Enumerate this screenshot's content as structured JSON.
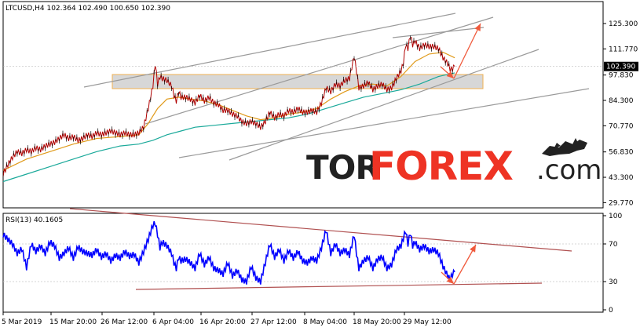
{
  "header": {
    "symbol_line": "LTCUSD,H4  102.364 102.490 100.650 102.390"
  },
  "rsi_header": "RSI(13) 40.1605",
  "watermark": {
    "part1": "TOR",
    "part2": "FOREX",
    "part3": ".com"
  },
  "colors": {
    "price_line": "#b00000",
    "ma_fast": "#e09a1a",
    "ma_slow": "#1aa99a",
    "rsi_line": "#0000ff",
    "trend_lines": "#9a9a9a",
    "rsi_trend": "#b05050",
    "arrow": "#f05a3c",
    "zone_fill": "#d0d0d0",
    "zone_border": "#f0b050"
  },
  "chart_data": [
    {
      "type": "line",
      "name_hint": "price",
      "y_ticks": [
        "125.300",
        "111.770",
        "97.830",
        "84.300",
        "70.770",
        "56.830",
        "43.300",
        "29.770"
      ],
      "y_tick_values": [
        125.3,
        111.77,
        97.83,
        84.3,
        70.77,
        56.83,
        43.3,
        29.77
      ],
      "ylim": [
        27.0,
        137.0
      ],
      "current_price_label": "102.390",
      "current_price": 102.39,
      "x_labels": [
        "5 Mar 2019",
        "15 Mar 20:00",
        "26 Mar 12:00",
        "6 Apr 04:00",
        "16 Apr 20:00",
        "27 Apr 12:00",
        "8 May 04:00",
        "18 May 20:00",
        "29 May 12:00"
      ],
      "price_path": [
        [
          0,
          45
        ],
        [
          2,
          50
        ],
        [
          4,
          54
        ],
        [
          6,
          57
        ],
        [
          8,
          56
        ],
        [
          10,
          58
        ],
        [
          12,
          57
        ],
        [
          14,
          59
        ],
        [
          16,
          58
        ],
        [
          18,
          60
        ],
        [
          20,
          61
        ],
        [
          22,
          62
        ],
        [
          24,
          64
        ],
        [
          26,
          66
        ],
        [
          28,
          64
        ],
        [
          30,
          65
        ],
        [
          32,
          63
        ],
        [
          34,
          64
        ],
        [
          36,
          66
        ],
        [
          38,
          65
        ],
        [
          40,
          67
        ],
        [
          42,
          66
        ],
        [
          44,
          67
        ],
        [
          46,
          68
        ],
        [
          48,
          67
        ],
        [
          50,
          66
        ],
        [
          52,
          67
        ],
        [
          54,
          66
        ],
        [
          56,
          66
        ],
        [
          58,
          67
        ],
        [
          60,
          70
        ],
        [
          62,
          80
        ],
        [
          64,
          92
        ],
        [
          65,
          104
        ],
        [
          66,
          93
        ],
        [
          67,
          97
        ],
        [
          68,
          96
        ],
        [
          70,
          95
        ],
        [
          72,
          92
        ],
        [
          73,
          87
        ],
        [
          74,
          84
        ],
        [
          75,
          89
        ],
        [
          76,
          86
        ],
        [
          78,
          86
        ],
        [
          80,
          85
        ],
        [
          82,
          83
        ],
        [
          84,
          87
        ],
        [
          86,
          84
        ],
        [
          88,
          86
        ],
        [
          90,
          83
        ],
        [
          92,
          82
        ],
        [
          94,
          79
        ],
        [
          96,
          79
        ],
        [
          98,
          77
        ],
        [
          100,
          76
        ],
        [
          102,
          73
        ],
        [
          104,
          72
        ],
        [
          106,
          73
        ],
        [
          108,
          72
        ],
        [
          110,
          70
        ],
        [
          112,
          73
        ],
        [
          114,
          78
        ],
        [
          116,
          75
        ],
        [
          118,
          77
        ],
        [
          120,
          76
        ],
        [
          122,
          79
        ],
        [
          124,
          78
        ],
        [
          126,
          80
        ],
        [
          128,
          78
        ],
        [
          130,
          78
        ],
        [
          132,
          79
        ],
        [
          134,
          78
        ],
        [
          136,
          83
        ],
        [
          138,
          91
        ],
        [
          140,
          89
        ],
        [
          142,
          93
        ],
        [
          144,
          92
        ],
        [
          146,
          95
        ],
        [
          148,
          96
        ],
        [
          150,
          108
        ],
        [
          151,
          100
        ],
        [
          152,
          91
        ],
        [
          154,
          92
        ],
        [
          156,
          94
        ],
        [
          158,
          90
        ],
        [
          160,
          92
        ],
        [
          162,
          93
        ],
        [
          164,
          90
        ],
        [
          166,
          91
        ],
        [
          168,
          96
        ],
        [
          170,
          100
        ],
        [
          171,
          104
        ],
        [
          172,
          114
        ],
        [
          173,
          112
        ],
        [
          174,
          119
        ],
        [
          175,
          114
        ],
        [
          176,
          116
        ],
        [
          178,
          112
        ],
        [
          180,
          114
        ],
        [
          182,
          113
        ],
        [
          184,
          113
        ],
        [
          186,
          112
        ],
        [
          188,
          107
        ],
        [
          190,
          104
        ],
        [
          191,
          101
        ],
        [
          192,
          101
        ],
        [
          193,
          102.39
        ]
      ],
      "ma_fast": [
        [
          0,
          47
        ],
        [
          10,
          53
        ],
        [
          20,
          57
        ],
        [
          30,
          61
        ],
        [
          40,
          64
        ],
        [
          50,
          65
        ],
        [
          58,
          66
        ],
        [
          62,
          72
        ],
        [
          66,
          80
        ],
        [
          70,
          85
        ],
        [
          75,
          86
        ],
        [
          80,
          85
        ],
        [
          86,
          84
        ],
        [
          92,
          82
        ],
        [
          98,
          79
        ],
        [
          104,
          76
        ],
        [
          110,
          74
        ],
        [
          116,
          75
        ],
        [
          122,
          77
        ],
        [
          128,
          78
        ],
        [
          134,
          80
        ],
        [
          140,
          85
        ],
        [
          146,
          89
        ],
        [
          152,
          92
        ],
        [
          158,
          93
        ],
        [
          164,
          92
        ],
        [
          170,
          97
        ],
        [
          176,
          105
        ],
        [
          182,
          109
        ],
        [
          188,
          110
        ],
        [
          193,
          107
        ]
      ],
      "ma_slow": [
        [
          0,
          41
        ],
        [
          10,
          45
        ],
        [
          20,
          49
        ],
        [
          30,
          53
        ],
        [
          40,
          57
        ],
        [
          50,
          60
        ],
        [
          58,
          61
        ],
        [
          64,
          63
        ],
        [
          70,
          66
        ],
        [
          76,
          68
        ],
        [
          82,
          70
        ],
        [
          90,
          71
        ],
        [
          98,
          72
        ],
        [
          106,
          73
        ],
        [
          114,
          74
        ],
        [
          122,
          75
        ],
        [
          130,
          77
        ],
        [
          138,
          80
        ],
        [
          146,
          83
        ],
        [
          154,
          86
        ],
        [
          162,
          88
        ],
        [
          170,
          90
        ],
        [
          178,
          93
        ],
        [
          186,
          97
        ],
        [
          193,
          99
        ]
      ]
    },
    {
      "type": "line",
      "name_hint": "rsi",
      "y_ticks": [
        "100",
        "70",
        "30",
        "0"
      ],
      "y_tick_values": [
        100,
        70,
        30,
        0
      ],
      "ylim": [
        0,
        100
      ],
      "current_value": 40.1605,
      "values": [
        [
          0,
          80
        ],
        [
          2,
          75
        ],
        [
          4,
          70
        ],
        [
          6,
          60
        ],
        [
          8,
          65
        ],
        [
          10,
          45
        ],
        [
          12,
          70
        ],
        [
          14,
          62
        ],
        [
          16,
          68
        ],
        [
          18,
          60
        ],
        [
          20,
          72
        ],
        [
          22,
          68
        ],
        [
          24,
          55
        ],
        [
          26,
          60
        ],
        [
          28,
          66
        ],
        [
          30,
          55
        ],
        [
          32,
          67
        ],
        [
          34,
          62
        ],
        [
          36,
          60
        ],
        [
          38,
          58
        ],
        [
          40,
          64
        ],
        [
          42,
          56
        ],
        [
          44,
          60
        ],
        [
          46,
          52
        ],
        [
          48,
          58
        ],
        [
          50,
          55
        ],
        [
          52,
          62
        ],
        [
          54,
          57
        ],
        [
          56,
          59
        ],
        [
          58,
          50
        ],
        [
          60,
          62
        ],
        [
          62,
          75
        ],
        [
          64,
          90
        ],
        [
          65,
          92
        ],
        [
          66,
          80
        ],
        [
          67,
          66
        ],
        [
          68,
          72
        ],
        [
          70,
          68
        ],
        [
          72,
          60
        ],
        [
          73,
          50
        ],
        [
          74,
          44
        ],
        [
          75,
          56
        ],
        [
          76,
          52
        ],
        [
          78,
          54
        ],
        [
          80,
          50
        ],
        [
          82,
          44
        ],
        [
          84,
          60
        ],
        [
          86,
          48
        ],
        [
          88,
          56
        ],
        [
          90,
          44
        ],
        [
          92,
          42
        ],
        [
          94,
          38
        ],
        [
          96,
          50
        ],
        [
          98,
          36
        ],
        [
          100,
          42
        ],
        [
          102,
          32
        ],
        [
          104,
          30
        ],
        [
          106,
          46
        ],
        [
          108,
          34
        ],
        [
          110,
          30
        ],
        [
          112,
          50
        ],
        [
          114,
          70
        ],
        [
          116,
          56
        ],
        [
          118,
          64
        ],
        [
          120,
          52
        ],
        [
          122,
          63
        ],
        [
          124,
          55
        ],
        [
          126,
          62
        ],
        [
          128,
          52
        ],
        [
          130,
          50
        ],
        [
          132,
          55
        ],
        [
          134,
          52
        ],
        [
          136,
          66
        ],
        [
          138,
          85
        ],
        [
          140,
          60
        ],
        [
          142,
          70
        ],
        [
          144,
          60
        ],
        [
          146,
          64
        ],
        [
          148,
          58
        ],
        [
          150,
          80
        ],
        [
          151,
          60
        ],
        [
          152,
          44
        ],
        [
          154,
          52
        ],
        [
          156,
          56
        ],
        [
          158,
          44
        ],
        [
          160,
          54
        ],
        [
          162,
          56
        ],
        [
          164,
          44
        ],
        [
          166,
          48
        ],
        [
          168,
          64
        ],
        [
          170,
          68
        ],
        [
          171,
          76
        ],
        [
          172,
          84
        ],
        [
          173,
          70
        ],
        [
          174,
          82
        ],
        [
          175,
          68
        ],
        [
          176,
          72
        ],
        [
          178,
          64
        ],
        [
          180,
          68
        ],
        [
          182,
          62
        ],
        [
          184,
          64
        ],
        [
          186,
          60
        ],
        [
          188,
          46
        ],
        [
          190,
          36
        ],
        [
          191,
          32
        ],
        [
          192,
          38
        ],
        [
          193,
          40.1605
        ]
      ]
    }
  ]
}
